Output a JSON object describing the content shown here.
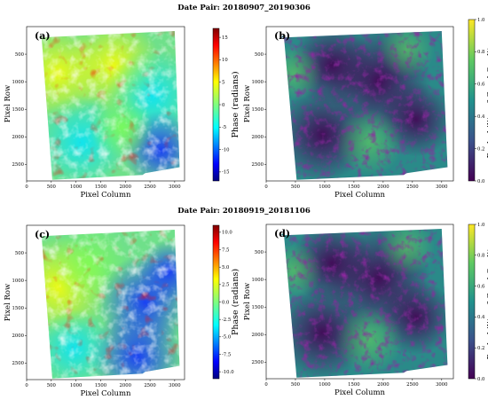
{
  "chart_data": [
    {
      "type": "heatmap",
      "figure_title": "Date Pair: 20180907_20190306",
      "panel_label": "(a)",
      "xlabel": "Pixel Column",
      "ylabel": "Pixel Row",
      "x_ticks": [
        "0",
        "500",
        "1000",
        "1500",
        "2000",
        "2500",
        "3000"
      ],
      "y_ticks": [
        "500",
        "1000",
        "1500",
        "2000",
        "2500"
      ],
      "colorbar_label": "Phase (radians)",
      "colorbar_ticks": [
        "15",
        "10",
        "5",
        "0",
        "-5",
        "-10",
        "-15"
      ],
      "colorbar_range": [
        -17,
        17
      ],
      "colormap": "jet"
    },
    {
      "type": "heatmap",
      "panel_label": "(b)",
      "xlabel": "Pixel Column",
      "ylabel": "Pixel Row",
      "x_ticks": [
        "0",
        "500",
        "1000",
        "1500",
        "2000",
        "2500",
        "3000"
      ],
      "y_ticks": [
        "500",
        "1000",
        "1500",
        "2000",
        "2500"
      ],
      "colorbar_label": "Probability of Good Quality",
      "colorbar_ticks": [
        "1.0",
        "0.8",
        "0.6",
        "0.4",
        "0.2",
        "0.0"
      ],
      "colorbar_range": [
        0,
        1
      ],
      "colormap": "viridis"
    },
    {
      "type": "heatmap",
      "figure_title": "Date Pair: 20180919_20181106",
      "panel_label": "(c)",
      "xlabel": "Pixel Column",
      "ylabel": "Pixel Row",
      "x_ticks": [
        "0",
        "500",
        "1000",
        "1500",
        "2000",
        "2500",
        "3000"
      ],
      "y_ticks": [
        "500",
        "1000",
        "1500",
        "2000",
        "2500"
      ],
      "colorbar_label": "Phase (radians)",
      "colorbar_ticks": [
        "10.0",
        "7.5",
        "5.0",
        "2.5",
        "0.0",
        "-2.5",
        "-5.0",
        "-7.5",
        "-10.0"
      ],
      "colorbar_range": [
        -11,
        11
      ],
      "colormap": "jet"
    },
    {
      "type": "heatmap",
      "panel_label": "(d)",
      "xlabel": "Pixel Column",
      "ylabel": "Pixel Row",
      "x_ticks": [
        "0",
        "500",
        "1000",
        "1500",
        "2000",
        "2500",
        "3000"
      ],
      "y_ticks": [
        "500",
        "1000",
        "1500",
        "2000",
        "2500"
      ],
      "colorbar_label": "Probability of Good Quality",
      "colorbar_ticks": [
        "1.0",
        "0.8",
        "0.6",
        "0.4",
        "0.2",
        "0.0"
      ],
      "colorbar_range": [
        0,
        1
      ],
      "colormap": "viridis"
    }
  ],
  "colors": {
    "jet": [
      "#00007f",
      "#0000ff",
      "#007fff",
      "#00ffff",
      "#7fff7f",
      "#ffff00",
      "#ff7f00",
      "#ff0000",
      "#7f0000"
    ],
    "viridis": [
      "#440154",
      "#3b528b",
      "#21918c",
      "#5ec962",
      "#fde725"
    ]
  }
}
